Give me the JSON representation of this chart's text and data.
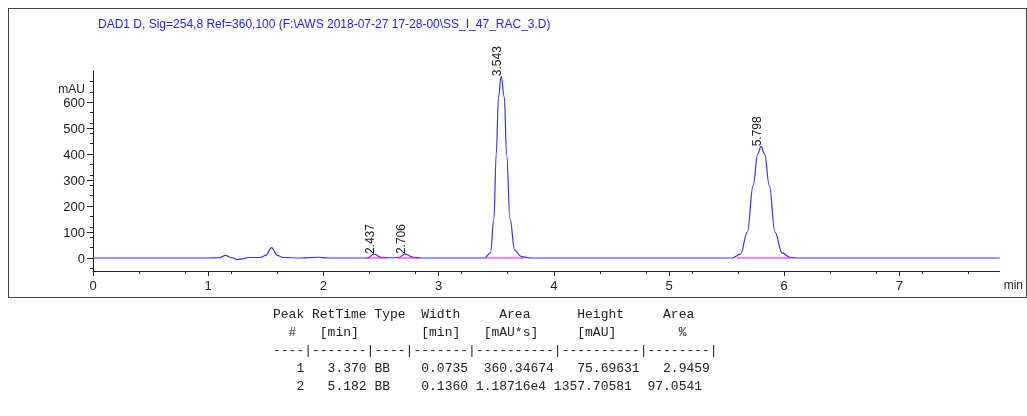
{
  "chart_data": {
    "type": "line",
    "title": "DAD1 D, Sig=254,8 Ref=360,100 (F:\\AWS 2018-07-27 17-28-00\\SS_I_47_RAC_3.D)",
    "xlabel": "min",
    "ylabel": "mAU",
    "xlim": [
      0,
      7.87
    ],
    "xticks": [
      0,
      1,
      2,
      3,
      4,
      5,
      6,
      7
    ],
    "ylim": [
      -50,
      720
    ],
    "yticks": [
      0,
      100,
      200,
      300,
      400,
      500,
      600
    ],
    "grid": false,
    "marker": "none",
    "line_style": "solid",
    "series": [
      {
        "color": "#3333ff",
        "x": [
          0,
          1.0,
          1.1,
          1.15,
          1.2,
          1.25,
          1.3,
          1.35,
          1.45,
          1.5,
          1.55,
          1.6,
          1.65,
          1.8,
          1.95,
          2.05,
          2.38,
          2.44,
          2.5,
          2.6,
          2.66,
          2.71,
          2.78,
          2.85,
          3.4,
          3.45,
          3.48,
          3.5,
          3.52,
          3.543,
          3.57,
          3.59,
          3.62,
          3.66,
          3.72,
          3.8,
          5.55,
          5.62,
          5.68,
          5.73,
          5.77,
          5.798,
          5.83,
          5.87,
          5.92,
          5.98,
          6.05,
          6.1,
          7.87
        ],
        "values": [
          0,
          0,
          1,
          10,
          2,
          -6,
          -3,
          2,
          2,
          10,
          40,
          10,
          2,
          0,
          3,
          0,
          0,
          15,
          3,
          1,
          3,
          15,
          3,
          0,
          0,
          20,
          150,
          400,
          620,
          700,
          620,
          400,
          150,
          30,
          5,
          0,
          0,
          15,
          100,
          280,
          400,
          430,
          400,
          280,
          100,
          20,
          3,
          0,
          0
        ]
      },
      {
        "color": "#ff00ff",
        "x": [
          2.37,
          2.56,
          2.6,
          2.64,
          2.83,
          3.1,
          3.41,
          3.74,
          4.5,
          5.59,
          6.07
        ],
        "values": [
          0,
          0,
          null,
          0,
          0,
          null,
          0,
          0,
          null,
          0,
          0
        ]
      }
    ],
    "annotations": [
      {
        "text": "2.437",
        "x": 2.437,
        "y": 15
      },
      {
        "text": "2.706",
        "x": 2.706,
        "y": 15
      },
      {
        "text": "3.543",
        "x": 3.543,
        "y": 700
      },
      {
        "text": "5.798",
        "x": 5.798,
        "y": 430
      },
      "Peak RetTime Type  Width     Area      Height     Area",
      "  #   [min]        [min]   [mAU*s]     [mAU]        %",
      "----|-------|----|-------|----------|----------|--------|",
      "   1   3.370 BB    0.0735  360.34674   75.69631   2.9459",
      "   2   5.182 BB    0.1360 1.18716e4 1357.70581  97.0541"
    ]
  }
}
